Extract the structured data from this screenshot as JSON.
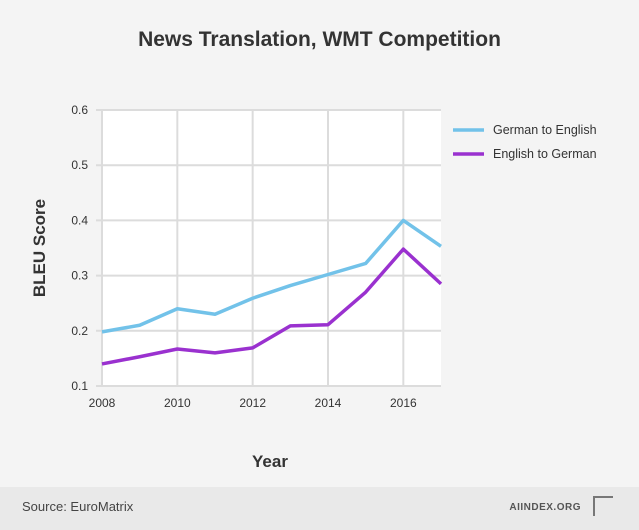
{
  "chart_data": {
    "type": "line",
    "title": "News Translation, WMT Competition",
    "xlabel": "Year",
    "ylabel": "BLEU Score",
    "x": [
      2008,
      2009,
      2010,
      2011,
      2012,
      2013,
      2014,
      2015,
      2016,
      2017
    ],
    "xlim": [
      2008,
      2017
    ],
    "ylim": [
      0.1,
      0.6
    ],
    "xticks": [
      "2008",
      "2010",
      "2012",
      "2014",
      "2016"
    ],
    "yticks": [
      "0.1",
      "0.2",
      "0.3",
      "0.4",
      "0.5",
      "0.6"
    ],
    "grid": true,
    "legend_position": "right",
    "series": [
      {
        "name": "German to English",
        "color": "#72c2e9",
        "values": [
          0.198,
          0.21,
          0.24,
          0.23,
          0.259,
          0.282,
          0.302,
          0.322,
          0.4,
          0.353
        ]
      },
      {
        "name": "English to German",
        "color": "#9a31cf",
        "values": [
          0.14,
          0.153,
          0.167,
          0.16,
          0.169,
          0.209,
          0.211,
          0.27,
          0.348,
          0.285
        ]
      }
    ]
  },
  "footer": {
    "source": "Source: EuroMatrix",
    "brand": "AIINDEX.ORG",
    "logo": "AI"
  }
}
